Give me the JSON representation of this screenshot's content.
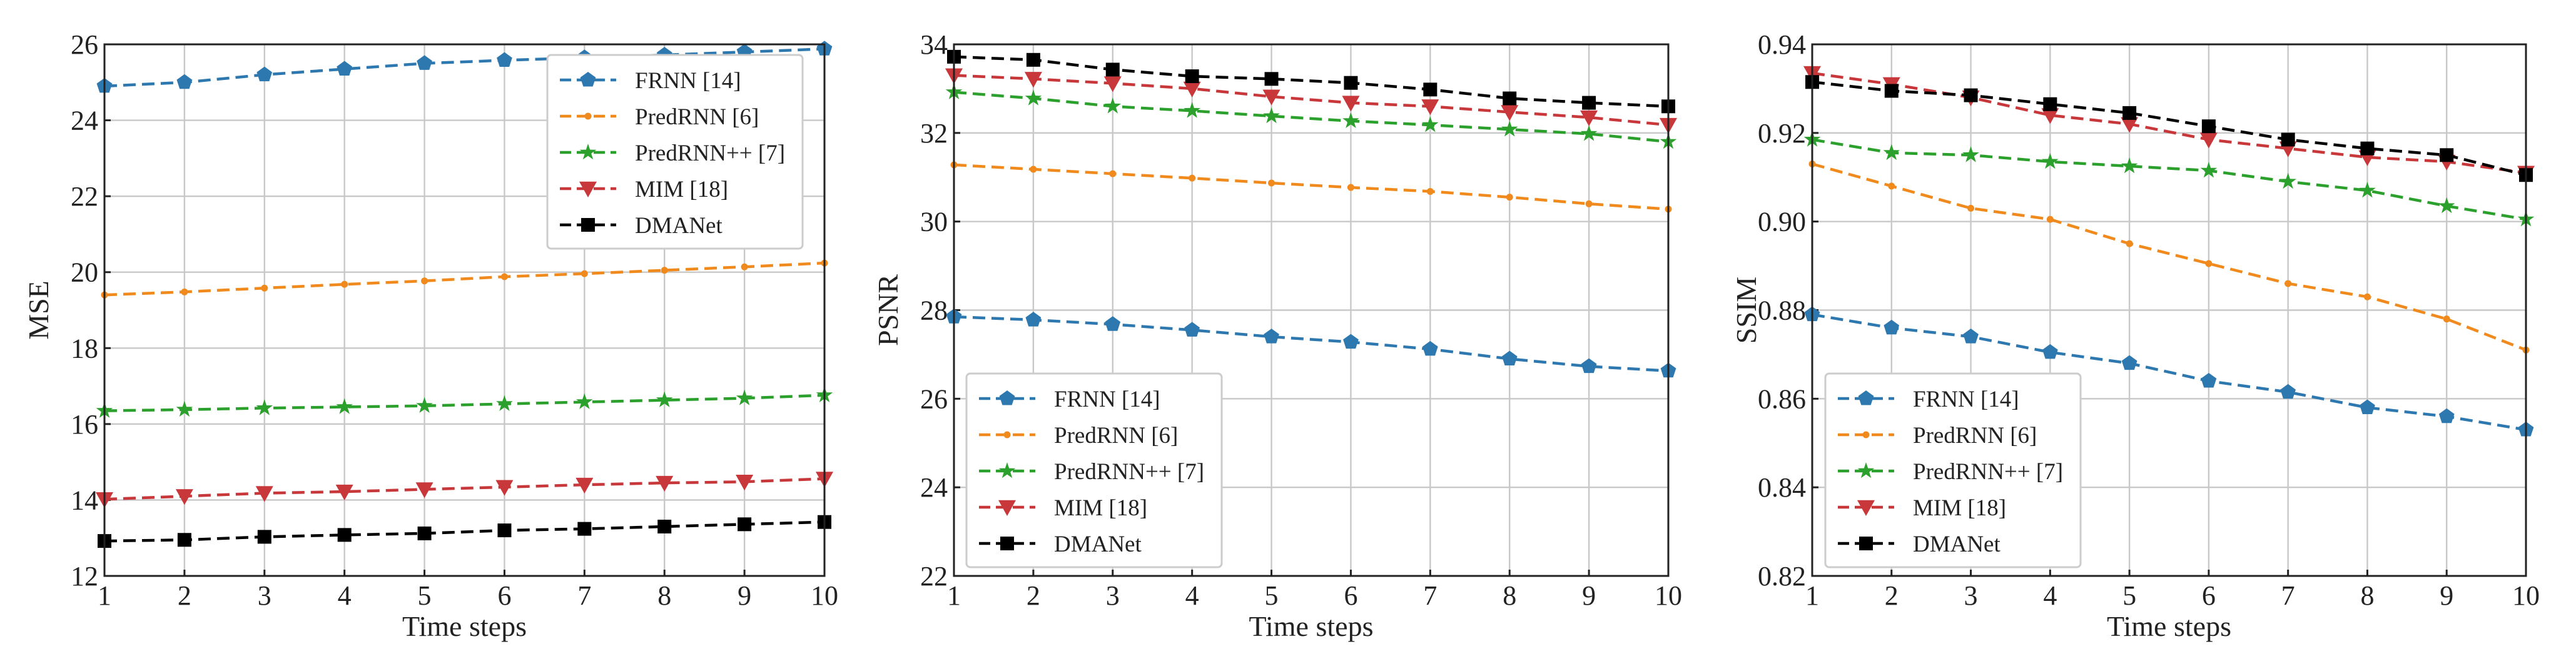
{
  "colors": {
    "FRNN": "#2e78b0",
    "PredRNN": "#f08a1c",
    "PredRNNpp": "#2ca02c",
    "MIM": "#c8373a",
    "DMANet": "#000000"
  },
  "chart_data": [
    {
      "type": "line",
      "title": "",
      "xlabel": "Time steps",
      "ylabel": "MSE",
      "x": [
        1,
        2,
        3,
        4,
        5,
        6,
        7,
        8,
        9,
        10
      ],
      "xlim": [
        1,
        10
      ],
      "ylim": [
        12,
        26
      ],
      "yticks": [
        12,
        14,
        16,
        18,
        20,
        22,
        24,
        26
      ],
      "ytick_labels": [
        "12",
        "14",
        "16",
        "18",
        "20",
        "22",
        "24",
        "26"
      ],
      "xticks": [
        1,
        2,
        3,
        4,
        5,
        6,
        7,
        8,
        9,
        10
      ],
      "xtick_labels": [
        "1",
        "2",
        "3",
        "4",
        "5",
        "6",
        "7",
        "8",
        "9",
        "10"
      ],
      "grid": true,
      "legend_position": "top-right",
      "series": [
        {
          "name": "FRNN [14]",
          "key": "FRNN",
          "marker": "pentagon",
          "values": [
            24.9,
            25.0,
            25.2,
            25.35,
            25.5,
            25.58,
            25.65,
            25.72,
            25.8,
            25.88
          ]
        },
        {
          "name": "PredRNN [6]",
          "key": "PredRNN",
          "marker": "dot",
          "values": [
            19.4,
            19.48,
            19.58,
            19.68,
            19.77,
            19.88,
            19.96,
            20.05,
            20.14,
            20.24
          ]
        },
        {
          "name": "PredRNN++ [7]",
          "key": "PredRNNpp",
          "marker": "star",
          "values": [
            16.35,
            16.38,
            16.42,
            16.45,
            16.48,
            16.53,
            16.58,
            16.63,
            16.68,
            16.76
          ]
        },
        {
          "name": "MIM [18]",
          "key": "MIM",
          "marker": "triangle-down",
          "values": [
            14.02,
            14.1,
            14.18,
            14.22,
            14.28,
            14.34,
            14.4,
            14.45,
            14.48,
            14.56
          ]
        },
        {
          "name": "DMANet",
          "key": "DMANet",
          "marker": "square",
          "values": [
            12.92,
            12.95,
            13.03,
            13.08,
            13.12,
            13.2,
            13.24,
            13.3,
            13.36,
            13.42
          ]
        }
      ]
    },
    {
      "type": "line",
      "title": "",
      "xlabel": "Time steps",
      "ylabel": "PSNR",
      "x": [
        1,
        2,
        3,
        4,
        5,
        6,
        7,
        8,
        9,
        10
      ],
      "xlim": [
        1,
        10
      ],
      "ylim": [
        22,
        34
      ],
      "yticks": [
        22,
        24,
        26,
        28,
        30,
        32,
        34
      ],
      "ytick_labels": [
        "22",
        "24",
        "26",
        "28",
        "30",
        "32",
        "34"
      ],
      "xticks": [
        1,
        2,
        3,
        4,
        5,
        6,
        7,
        8,
        9,
        10
      ],
      "xtick_labels": [
        "1",
        "2",
        "3",
        "4",
        "5",
        "6",
        "7",
        "8",
        "9",
        "10"
      ],
      "grid": true,
      "legend_position": "bottom-left",
      "series": [
        {
          "name": "FRNN [14]",
          "key": "FRNN",
          "marker": "pentagon",
          "values": [
            27.85,
            27.78,
            27.68,
            27.55,
            27.4,
            27.28,
            27.12,
            26.9,
            26.73,
            26.63
          ]
        },
        {
          "name": "PredRNN [6]",
          "key": "PredRNN",
          "marker": "dot",
          "values": [
            31.28,
            31.18,
            31.08,
            30.98,
            30.87,
            30.77,
            30.68,
            30.55,
            30.4,
            30.28
          ]
        },
        {
          "name": "PredRNN++ [7]",
          "key": "PredRNNpp",
          "marker": "star",
          "values": [
            32.92,
            32.78,
            32.6,
            32.5,
            32.38,
            32.27,
            32.18,
            32.08,
            31.98,
            31.8
          ]
        },
        {
          "name": "MIM [18]",
          "key": "MIM",
          "marker": "triangle-down",
          "values": [
            33.3,
            33.22,
            33.12,
            33.0,
            32.82,
            32.68,
            32.6,
            32.47,
            32.35,
            32.18
          ]
        },
        {
          "name": "DMANet",
          "key": "DMANet",
          "marker": "square",
          "values": [
            33.72,
            33.65,
            33.43,
            33.28,
            33.22,
            33.13,
            32.98,
            32.78,
            32.68,
            32.6
          ]
        }
      ]
    },
    {
      "type": "line",
      "title": "",
      "xlabel": "Time steps",
      "ylabel": "SSIM",
      "x": [
        1,
        2,
        3,
        4,
        5,
        6,
        7,
        8,
        9,
        10
      ],
      "xlim": [
        1,
        10
      ],
      "ylim": [
        0.82,
        0.94
      ],
      "yticks": [
        0.82,
        0.84,
        0.86,
        0.88,
        0.9,
        0.92,
        0.94
      ],
      "ytick_labels": [
        "0.82",
        "0.84",
        "0.86",
        "0.88",
        "0.90",
        "0.92",
        "0.94"
      ],
      "xticks": [
        1,
        2,
        3,
        4,
        5,
        6,
        7,
        8,
        9,
        10
      ],
      "xtick_labels": [
        "1",
        "2",
        "3",
        "4",
        "5",
        "6",
        "7",
        "8",
        "9",
        "10"
      ],
      "grid": true,
      "legend_position": "bottom-left",
      "series": [
        {
          "name": "FRNN [14]",
          "key": "FRNN",
          "marker": "pentagon",
          "values": [
            0.879,
            0.876,
            0.874,
            0.8705,
            0.868,
            0.864,
            0.8615,
            0.858,
            0.856,
            0.853
          ]
        },
        {
          "name": "PredRNN [6]",
          "key": "PredRNN",
          "marker": "dot",
          "values": [
            0.913,
            0.908,
            0.903,
            0.9005,
            0.895,
            0.8905,
            0.886,
            0.883,
            0.878,
            0.871
          ]
        },
        {
          "name": "PredRNN++ [7]",
          "key": "PredRNNpp",
          "marker": "star",
          "values": [
            0.9185,
            0.9155,
            0.915,
            0.9135,
            0.9125,
            0.9115,
            0.909,
            0.907,
            0.9035,
            0.9005
          ]
        },
        {
          "name": "MIM [18]",
          "key": "MIM",
          "marker": "triangle-down",
          "values": [
            0.9335,
            0.931,
            0.928,
            0.924,
            0.922,
            0.9185,
            0.9165,
            0.9145,
            0.9135,
            0.911
          ]
        },
        {
          "name": "DMANet",
          "key": "DMANet",
          "marker": "square",
          "values": [
            0.9315,
            0.9295,
            0.9285,
            0.9265,
            0.9245,
            0.9215,
            0.9185,
            0.9165,
            0.915,
            0.9105
          ]
        }
      ]
    }
  ]
}
